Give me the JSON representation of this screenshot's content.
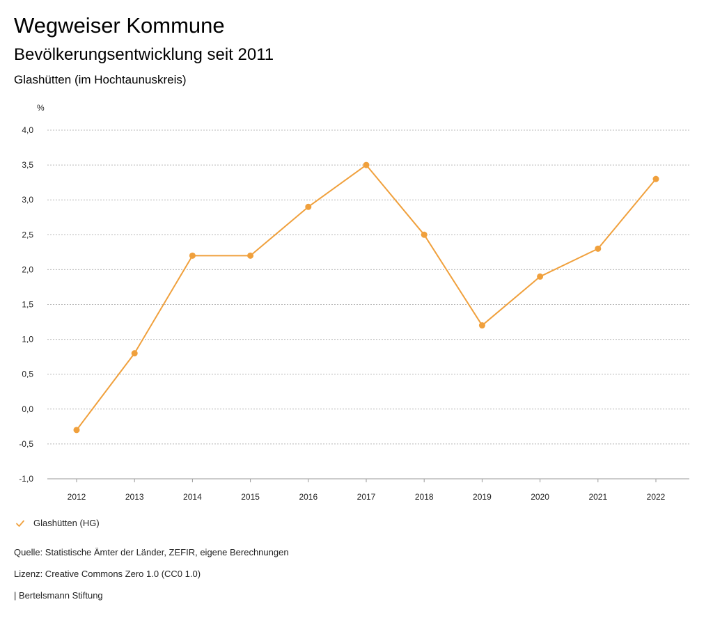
{
  "header": {
    "title": "Wegweiser Kommune",
    "subtitle": "Bevölkerungsentwicklung seit 2011",
    "region": "Glashütten (im Hochtaunuskreis)"
  },
  "chart_data": {
    "type": "line",
    "y_unit": "%",
    "ylim": [
      -1.0,
      4.0
    ],
    "y_ticks": [
      -1.0,
      -0.5,
      0.0,
      0.5,
      1.0,
      1.5,
      2.0,
      2.5,
      3.0,
      3.5,
      4.0
    ],
    "y_tick_labels": [
      "-1,0",
      "-0,5",
      "0,0",
      "0,5",
      "1,0",
      "1,5",
      "2,0",
      "2,5",
      "3,0",
      "3,5",
      "4,0"
    ],
    "categories": [
      "2012",
      "2013",
      "2014",
      "2015",
      "2016",
      "2017",
      "2018",
      "2019",
      "2020",
      "2021",
      "2022"
    ],
    "grid": true,
    "legend_position": "bottom-left",
    "series": [
      {
        "name": "Glashütten (HG)",
        "color": "#f0a03c",
        "values": [
          -0.3,
          0.8,
          2.2,
          2.2,
          2.9,
          3.5,
          2.5,
          1.2,
          1.9,
          2.3,
          3.3
        ]
      }
    ]
  },
  "legend": {
    "label": "Glashütten (HG)",
    "icon": "check-icon"
  },
  "footer": {
    "source": "Quelle: Statistische Ämter der Länder, ZEFIR, eigene Berechnungen",
    "license": "Lizenz: Creative Commons Zero 1.0 (CC0 1.0)",
    "brand": "| Bertelsmann Stiftung"
  }
}
